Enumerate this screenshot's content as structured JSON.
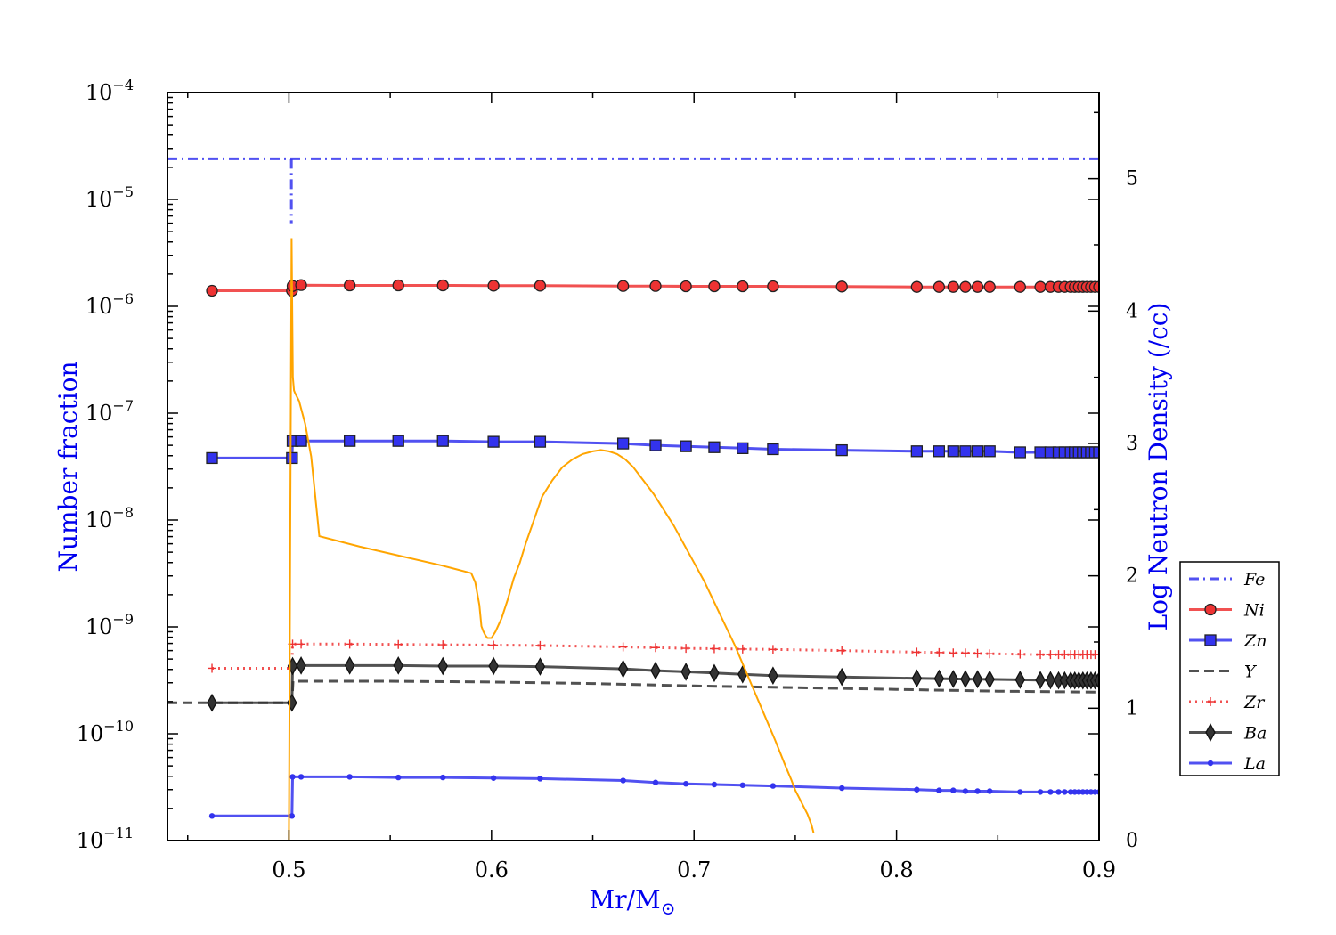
{
  "chart_data": {
    "type": "line",
    "xlabel": "Mr/M",
    "xlabel_subscript": "⊙",
    "ylabel": "Number fraction",
    "y2label": "Log Neutron Density (/cc)",
    "xlim": [
      0.44,
      0.9
    ],
    "ylim": [
      1e-11,
      0.0001
    ],
    "y_scale": "log",
    "y2lim": [
      0,
      5.65
    ],
    "x_ticks": [
      "0.5",
      "0.6",
      "0.7",
      "0.8",
      "0.9"
    ],
    "y_ticks": [
      {
        "base": "10",
        "exp": "−4"
      },
      {
        "base": "10",
        "exp": "−5"
      },
      {
        "base": "10",
        "exp": "−6"
      },
      {
        "base": "10",
        "exp": "−7"
      },
      {
        "base": "10",
        "exp": "−8"
      },
      {
        "base": "10",
        "exp": "−9"
      },
      {
        "base": "10",
        "exp": "−10"
      },
      {
        "base": "10",
        "exp": "−11"
      }
    ],
    "y2_ticks": [
      "0",
      "1",
      "2",
      "3",
      "4",
      "5"
    ],
    "legend_position": "right",
    "grid": false,
    "colors": {
      "red": "#ee3333",
      "blue": "#3333ee",
      "black": "#333333",
      "orange": "#ffa500",
      "axis_title": "#0000ee"
    },
    "series": [
      {
        "name": "Fe",
        "color": "#3333ee",
        "style": "dashdot",
        "marker": "none",
        "x": [
          0.44,
          0.4995,
          0.5005,
          0.9
        ],
        "y": [
          2.4e-05,
          2.4e-05,
          2.4e-05,
          2.4e-05
        ],
        "drop": {
          "x": 0.5012,
          "y_top": 2.4e-05,
          "y_bottom": 6e-06
        }
      },
      {
        "name": "Ni",
        "color": "#ee3333",
        "style": "solid",
        "marker": "circle",
        "x": [
          0.462,
          0.5015,
          0.5018,
          0.506,
          0.53,
          0.554,
          0.576,
          0.601,
          0.624,
          0.665,
          0.681,
          0.696,
          0.71,
          0.724,
          0.739,
          0.773,
          0.81,
          0.821,
          0.828,
          0.834,
          0.84,
          0.846,
          0.861,
          0.871,
          0.876,
          0.88,
          0.883,
          0.886,
          0.888,
          0.89,
          0.892,
          0.894,
          0.896,
          0.898,
          0.9
        ],
        "y": [
          1.4e-06,
          1.4e-06,
          1.55e-06,
          1.58e-06,
          1.57e-06,
          1.57e-06,
          1.57e-06,
          1.56e-06,
          1.56e-06,
          1.55e-06,
          1.55e-06,
          1.54e-06,
          1.54e-06,
          1.54e-06,
          1.54e-06,
          1.53e-06,
          1.52e-06,
          1.52e-06,
          1.52e-06,
          1.52e-06,
          1.52e-06,
          1.52e-06,
          1.52e-06,
          1.52e-06,
          1.52e-06,
          1.52e-06,
          1.52e-06,
          1.52e-06,
          1.52e-06,
          1.52e-06,
          1.52e-06,
          1.52e-06,
          1.52e-06,
          1.52e-06,
          1.52e-06
        ]
      },
      {
        "name": "Zn",
        "color": "#3333ee",
        "style": "solid",
        "marker": "square",
        "x": [
          0.462,
          0.5015,
          0.5018,
          0.506,
          0.53,
          0.554,
          0.576,
          0.601,
          0.624,
          0.665,
          0.681,
          0.696,
          0.71,
          0.724,
          0.739,
          0.773,
          0.81,
          0.821,
          0.828,
          0.834,
          0.84,
          0.846,
          0.861,
          0.871,
          0.876,
          0.88,
          0.883,
          0.886,
          0.888,
          0.89,
          0.892,
          0.894,
          0.896,
          0.898,
          0.9
        ],
        "y": [
          3.8e-08,
          3.8e-08,
          5.5e-08,
          5.5e-08,
          5.5e-08,
          5.5e-08,
          5.5e-08,
          5.4e-08,
          5.4e-08,
          5.2e-08,
          5e-08,
          4.9e-08,
          4.8e-08,
          4.7e-08,
          4.6e-08,
          4.5e-08,
          4.4e-08,
          4.4e-08,
          4.4e-08,
          4.4e-08,
          4.4e-08,
          4.4e-08,
          4.3e-08,
          4.3e-08,
          4.3e-08,
          4.3e-08,
          4.3e-08,
          4.3e-08,
          4.3e-08,
          4.3e-08,
          4.3e-08,
          4.3e-08,
          4.3e-08,
          4.3e-08,
          4.3e-08
        ]
      },
      {
        "name": "Y",
        "color": "#333333",
        "style": "dashed",
        "marker": "none",
        "x": [
          0.44,
          0.5015,
          0.502,
          0.55,
          0.6,
          0.65,
          0.7,
          0.75,
          0.8,
          0.85,
          0.9
        ],
        "y": [
          1.95e-10,
          1.95e-10,
          3.1e-10,
          3.1e-10,
          3.05e-10,
          2.95e-10,
          2.8e-10,
          2.7e-10,
          2.6e-10,
          2.5e-10,
          2.45e-10
        ]
      },
      {
        "name": "Zr",
        "color": "#ee3333",
        "style": "dotted",
        "marker": "plus",
        "x": [
          0.462,
          0.5015,
          0.5018,
          0.506,
          0.53,
          0.554,
          0.576,
          0.601,
          0.624,
          0.665,
          0.681,
          0.696,
          0.71,
          0.724,
          0.739,
          0.773,
          0.81,
          0.821,
          0.828,
          0.834,
          0.84,
          0.846,
          0.861,
          0.871,
          0.876,
          0.88,
          0.883,
          0.886,
          0.888,
          0.89,
          0.892,
          0.894,
          0.896,
          0.898,
          0.9
        ],
        "y": [
          4.1e-10,
          4.1e-10,
          6.9e-10,
          6.9e-10,
          6.9e-10,
          6.85e-10,
          6.8e-10,
          6.75e-10,
          6.7e-10,
          6.5e-10,
          6.4e-10,
          6.3e-10,
          6.25e-10,
          6.2e-10,
          6.15e-10,
          6e-10,
          5.8e-10,
          5.75e-10,
          5.7e-10,
          5.7e-10,
          5.65e-10,
          5.6e-10,
          5.55e-10,
          5.5e-10,
          5.5e-10,
          5.5e-10,
          5.5e-10,
          5.5e-10,
          5.5e-10,
          5.5e-10,
          5.5e-10,
          5.5e-10,
          5.5e-10,
          5.5e-10,
          5.5e-10
        ]
      },
      {
        "name": "Ba",
        "color": "#333333",
        "style": "solid",
        "marker": "diamond",
        "x": [
          0.462,
          0.5015,
          0.5018,
          0.506,
          0.53,
          0.554,
          0.576,
          0.601,
          0.624,
          0.665,
          0.681,
          0.696,
          0.71,
          0.724,
          0.739,
          0.773,
          0.81,
          0.821,
          0.828,
          0.834,
          0.84,
          0.846,
          0.861,
          0.871,
          0.876,
          0.88,
          0.883,
          0.886,
          0.888,
          0.89,
          0.892,
          0.894,
          0.896,
          0.898,
          0.9
        ],
        "y": [
          1.95e-10,
          1.95e-10,
          4.3e-10,
          4.35e-10,
          4.35e-10,
          4.35e-10,
          4.3e-10,
          4.3e-10,
          4.25e-10,
          4.05e-10,
          3.9e-10,
          3.8e-10,
          3.7e-10,
          3.6e-10,
          3.5e-10,
          3.4e-10,
          3.3e-10,
          3.28e-10,
          3.26e-10,
          3.25e-10,
          3.24e-10,
          3.23e-10,
          3.2e-10,
          3.18e-10,
          3.17e-10,
          3.16e-10,
          3.16e-10,
          3.15e-10,
          3.15e-10,
          3.15e-10,
          3.15e-10,
          3.15e-10,
          3.15e-10,
          3.15e-10,
          3.15e-10
        ]
      },
      {
        "name": "La",
        "color": "#3333ee",
        "style": "solid",
        "marker": "dot",
        "x": [
          0.462,
          0.5015,
          0.5018,
          0.506,
          0.53,
          0.554,
          0.576,
          0.601,
          0.624,
          0.665,
          0.681,
          0.696,
          0.71,
          0.724,
          0.739,
          0.773,
          0.81,
          0.821,
          0.828,
          0.834,
          0.84,
          0.846,
          0.861,
          0.871,
          0.876,
          0.88,
          0.883,
          0.886,
          0.888,
          0.89,
          0.892,
          0.894,
          0.896,
          0.898,
          0.9
        ],
        "y": [
          1.7e-11,
          1.7e-11,
          3.95e-11,
          3.95e-11,
          3.95e-11,
          3.9e-11,
          3.9e-11,
          3.85e-11,
          3.8e-11,
          3.65e-11,
          3.5e-11,
          3.4e-11,
          3.35e-11,
          3.3e-11,
          3.25e-11,
          3.1e-11,
          3e-11,
          2.95e-11,
          2.95e-11,
          2.9e-11,
          2.9e-11,
          2.9e-11,
          2.85e-11,
          2.85e-11,
          2.85e-11,
          2.85e-11,
          2.85e-11,
          2.85e-11,
          2.85e-11,
          2.85e-11,
          2.85e-11,
          2.85e-11,
          2.85e-11,
          2.85e-11,
          2.85e-11
        ]
      },
      {
        "name": "",
        "axis": "right",
        "color": "#ffa500",
        "style": "solid",
        "marker": "none",
        "x": [
          0.5,
          0.5007,
          0.5013,
          0.5019,
          0.5025,
          0.503,
          0.505,
          0.508,
          0.511,
          0.513,
          0.515,
          0.535,
          0.555,
          0.575,
          0.59,
          0.592,
          0.594,
          0.595,
          0.596,
          0.597,
          0.598,
          0.599,
          0.6,
          0.602,
          0.605,
          0.608,
          0.611,
          0.614,
          0.617,
          0.62,
          0.625,
          0.63,
          0.635,
          0.64,
          0.645,
          0.65,
          0.654,
          0.658,
          0.662,
          0.666,
          0.67,
          0.675,
          0.68,
          0.685,
          0.69,
          0.695,
          0.7,
          0.705,
          0.71,
          0.715,
          0.72,
          0.725,
          0.73,
          0.735,
          0.74,
          0.745,
          0.748,
          0.75,
          0.752,
          0.754,
          0.756,
          0.758,
          0.759
        ],
        "y": [
          0,
          2.5,
          4.55,
          3.5,
          3.4,
          3.38,
          3.32,
          3.15,
          2.9,
          2.6,
          2.3,
          2.22,
          2.15,
          2.08,
          2.02,
          1.95,
          1.78,
          1.62,
          1.58,
          1.55,
          1.53,
          1.53,
          1.53,
          1.58,
          1.68,
          1.82,
          1.98,
          2.1,
          2.25,
          2.38,
          2.6,
          2.72,
          2.82,
          2.88,
          2.92,
          2.94,
          2.95,
          2.94,
          2.92,
          2.88,
          2.82,
          2.72,
          2.62,
          2.5,
          2.38,
          2.24,
          2.1,
          1.96,
          1.8,
          1.64,
          1.48,
          1.3,
          1.12,
          0.94,
          0.76,
          0.57,
          0.46,
          0.38,
          0.32,
          0.26,
          0.2,
          0.12,
          0.06
        ]
      }
    ]
  }
}
